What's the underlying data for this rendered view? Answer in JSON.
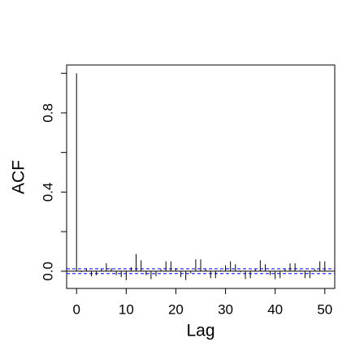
{
  "chart_data": {
    "type": "stem",
    "xlabel": "Lag",
    "ylabel": "ACF",
    "x": [
      0,
      1,
      2,
      3,
      4,
      5,
      6,
      7,
      8,
      9,
      10,
      11,
      12,
      13,
      14,
      15,
      16,
      17,
      18,
      19,
      20,
      21,
      22,
      23,
      24,
      25,
      26,
      27,
      28,
      29,
      30,
      31,
      32,
      33,
      34,
      35,
      36,
      37,
      38,
      39,
      40,
      41,
      42,
      43,
      44,
      45,
      46,
      47,
      48,
      49,
      50
    ],
    "values": [
      1,
      -0.005,
      0.015,
      -0.025,
      -0.02,
      0.01,
      0.04,
      0.015,
      -0.02,
      -0.03,
      -0.045,
      0.02,
      0.087,
      0.055,
      -0.02,
      -0.04,
      -0.025,
      0.01,
      0.05,
      0.05,
      0.015,
      -0.03,
      -0.045,
      -0.01,
      0.06,
      0.06,
      0.01,
      -0.035,
      -0.035,
      0.005,
      0.03,
      0.05,
      0.035,
      -0.005,
      -0.04,
      -0.035,
      0.01,
      0.055,
      0.035,
      -0.02,
      -0.04,
      -0.035,
      0.01,
      0.04,
      0.04,
      0.005,
      -0.035,
      -0.035,
      0.01,
      0.05,
      0.05
    ],
    "color": "#000000",
    "ci": 0.012,
    "ci_color": "#0000ff",
    "xlim": [
      -2,
      52
    ],
    "xticks": [
      0,
      10,
      20,
      30,
      40,
      50
    ],
    "ylim": [
      -0.087,
      1.042
    ],
    "yticks": [
      {
        "value": 0,
        "label": "0.0"
      },
      {
        "value": 0.2,
        "label": null
      },
      {
        "value": 0.4,
        "label": "0.4"
      },
      {
        "value": 0.6,
        "label": null
      },
      {
        "value": 0.8,
        "label": "0.8"
      },
      {
        "value": 1.0,
        "label": null
      }
    ]
  }
}
